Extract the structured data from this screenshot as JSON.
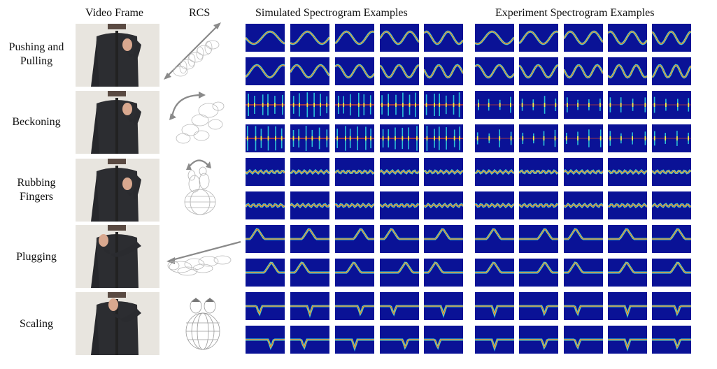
{
  "headers": {
    "video": "Video Frame",
    "rcs": "RCS",
    "sim": "Simulated Spectrogram Examples",
    "exp": "Experiment  Spectrogram Examples"
  },
  "rows": [
    {
      "label_lines": [
        "Pushing and",
        "Pulling"
      ],
      "sim_style": "wave",
      "exp_style": "wave"
    },
    {
      "label_lines": [
        "Beckoning"
      ],
      "sim_style": "spikes",
      "exp_style": "sparse"
    },
    {
      "label_lines": [
        "Rubbing",
        "Fingers"
      ],
      "sim_style": "ripple",
      "exp_style": "ripple"
    },
    {
      "label_lines": [
        "Plugging"
      ],
      "sim_style": "bump",
      "exp_style": "bump"
    },
    {
      "label_lines": [
        "Scaling"
      ],
      "sim_style": "dip",
      "exp_style": "dip"
    }
  ],
  "colors": {
    "spectrogram_bg": "#0a1296",
    "band_cyan": "#2fd3e0",
    "band_yellow": "#f3e94a",
    "band_red": "#d2452c",
    "arrow_gray": "#8a8a8a",
    "shirt": "#2c2d31"
  }
}
